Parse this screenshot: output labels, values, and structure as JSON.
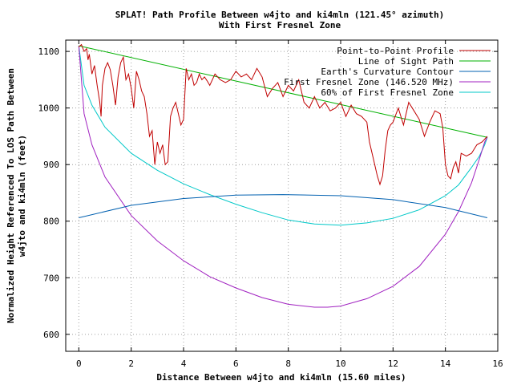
{
  "chart_data": {
    "type": "line",
    "title": "SPLAT! Path Profile Between w4jto and ki4mln (121.45° azimuth)",
    "subtitle": "With First Fresnel Zone",
    "xlabel": "Distance Between w4jto and ki4mln (15.60 miles)",
    "ylabel_line1": "Normalized Height Referenced To LOS Path Between",
    "ylabel_line2": "w4jto and ki4mln (feet)",
    "xlim": [
      -0.5,
      16
    ],
    "ylim": [
      570,
      1120
    ],
    "xticks": [
      0,
      2,
      4,
      6,
      8,
      10,
      12,
      14,
      16
    ],
    "yticks": [
      600,
      700,
      800,
      900,
      1000,
      1100
    ],
    "grid": true,
    "legend_position": "top-right",
    "series": [
      {
        "name": "Point-to-Point Profile",
        "color": "#c00000",
        "x": [
          0,
          0.1,
          0.2,
          0.3,
          0.35,
          0.4,
          0.5,
          0.6,
          0.7,
          0.8,
          0.85,
          0.9,
          1.0,
          1.1,
          1.2,
          1.3,
          1.4,
          1.5,
          1.6,
          1.7,
          1.8,
          1.9,
          2.0,
          2.1,
          2.2,
          2.3,
          2.4,
          2.5,
          2.6,
          2.7,
          2.8,
          2.9,
          3.0,
          3.1,
          3.2,
          3.3,
          3.4,
          3.5,
          3.6,
          3.7,
          3.8,
          3.9,
          4.0,
          4.1,
          4.2,
          4.3,
          4.4,
          4.5,
          4.6,
          4.7,
          4.8,
          4.9,
          5.0,
          5.2,
          5.4,
          5.6,
          5.8,
          6.0,
          6.2,
          6.4,
          6.6,
          6.8,
          7.0,
          7.2,
          7.4,
          7.6,
          7.8,
          8.0,
          8.2,
          8.4,
          8.6,
          8.8,
          9.0,
          9.2,
          9.4,
          9.6,
          9.8,
          10.0,
          10.2,
          10.4,
          10.6,
          10.8,
          11.0,
          11.1,
          11.2,
          11.3,
          11.4,
          11.5,
          11.6,
          11.7,
          11.8,
          11.9,
          12.0,
          12.2,
          12.4,
          12.6,
          12.8,
          13.0,
          13.2,
          13.4,
          13.6,
          13.8,
          13.9,
          14.0,
          14.1,
          14.2,
          14.3,
          14.4,
          14.5,
          14.6,
          14.8,
          15.0,
          15.2,
          15.4,
          15.5,
          15.6
        ],
        "values": [
          1108,
          1112,
          1100,
          1105,
          1085,
          1095,
          1060,
          1075,
          1040,
          1010,
          985,
          1040,
          1070,
          1080,
          1068,
          1040,
          1005,
          1055,
          1080,
          1090,
          1050,
          1060,
          1035,
          1000,
          1065,
          1050,
          1030,
          1020,
          990,
          950,
          960,
          900,
          940,
          920,
          935,
          900,
          905,
          985,
          1000,
          1010,
          990,
          970,
          980,
          1070,
          1050,
          1060,
          1040,
          1045,
          1060,
          1050,
          1055,
          1048,
          1040,
          1060,
          1050,
          1045,
          1050,
          1065,
          1055,
          1060,
          1050,
          1070,
          1055,
          1020,
          1035,
          1045,
          1020,
          1040,
          1030,
          1050,
          1010,
          1000,
          1020,
          1000,
          1010,
          995,
          1000,
          1010,
          985,
          1005,
          990,
          985,
          975,
          940,
          920,
          900,
          880,
          865,
          880,
          925,
          960,
          970,
          975,
          1000,
          970,
          1010,
          995,
          980,
          950,
          975,
          995,
          990,
          965,
          900,
          880,
          875,
          895,
          905,
          885,
          920,
          915,
          920,
          935,
          940,
          945,
          950
        ]
      },
      {
        "name": "Line of Sight Path",
        "color": "#00b000",
        "x": [
          0,
          15.6
        ],
        "values": [
          1110,
          948
        ]
      },
      {
        "name": "Earth's Curvature Contour",
        "color": "#0060b0",
        "x": [
          0,
          2,
          4,
          6,
          7.8,
          10,
          12,
          14,
          15.6
        ],
        "values": [
          806,
          828,
          840,
          846,
          847,
          845,
          838,
          824,
          806
        ]
      },
      {
        "name": "First Fresnel Zone (146.520 MHz)",
        "color": "#a020c0",
        "x": [
          0,
          0.2,
          0.5,
          1,
          2,
          3,
          4,
          5,
          6,
          7,
          8,
          9,
          9.5,
          10,
          11,
          12,
          13,
          14,
          14.5,
          15,
          15.3,
          15.5,
          15.6
        ],
        "values": [
          1110,
          990,
          935,
          878,
          810,
          765,
          730,
          702,
          682,
          665,
          653,
          648,
          648,
          650,
          663,
          685,
          720,
          777,
          817,
          868,
          910,
          940,
          948
        ]
      },
      {
        "name": "60% of First Fresnel Zone",
        "color": "#00c8c8",
        "x": [
          0,
          0.2,
          0.5,
          1,
          2,
          3,
          4,
          5,
          6,
          7,
          8,
          9,
          10,
          11,
          12,
          13,
          14,
          14.5,
          15,
          15.3,
          15.5,
          15.6
        ],
        "values": [
          1110,
          1040,
          1005,
          966,
          920,
          890,
          866,
          847,
          830,
          815,
          802,
          795,
          793,
          797,
          805,
          820,
          845,
          864,
          895,
          915,
          935,
          948
        ]
      }
    ]
  }
}
